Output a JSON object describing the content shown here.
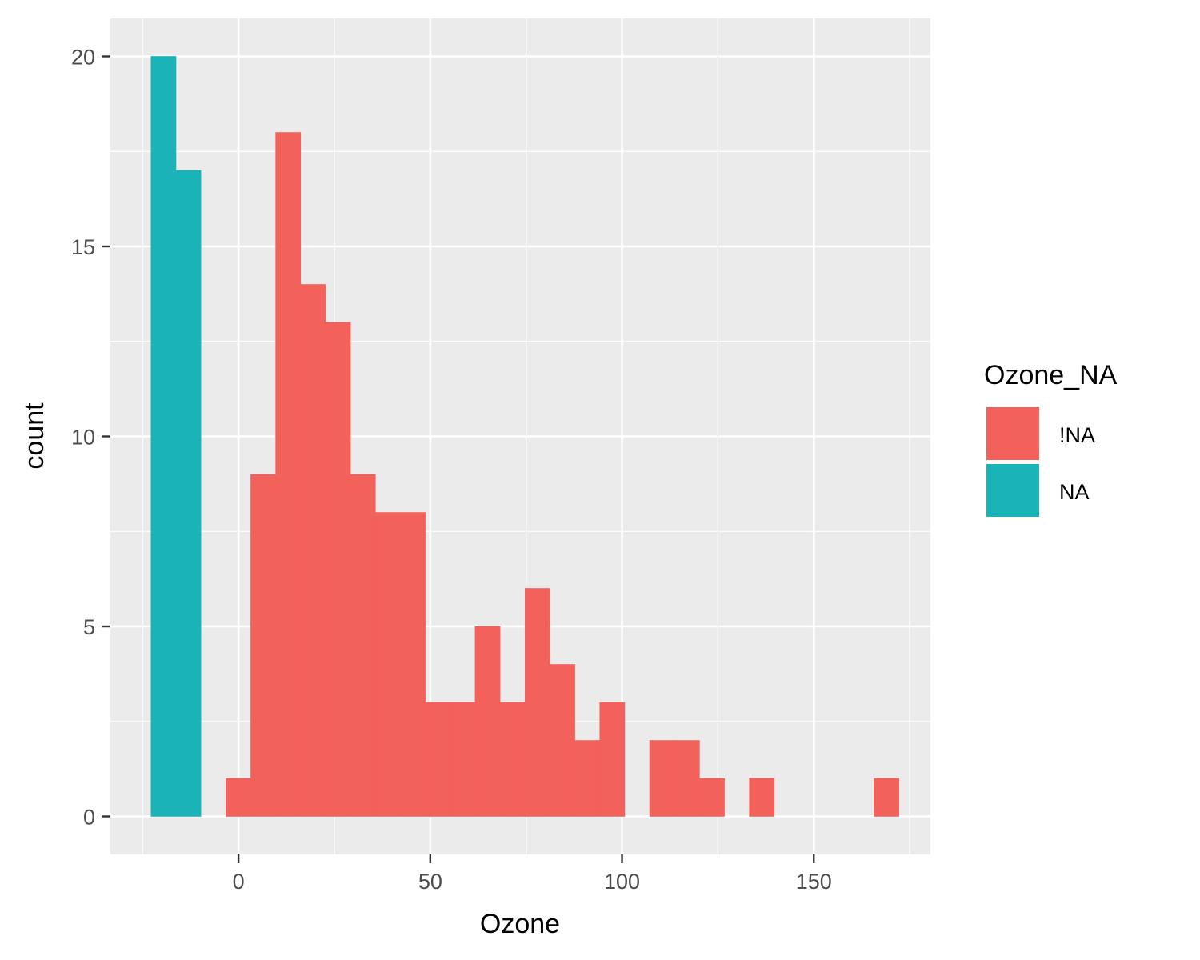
{
  "chart_data": {
    "type": "bar",
    "title": "",
    "xlabel": "Ozone",
    "ylabel": "count",
    "xlim": [
      -33.4,
      180.4
    ],
    "ylim": [
      -1,
      21
    ],
    "x_ticks": [
      0,
      50,
      100,
      150
    ],
    "y_ticks": [
      0,
      5,
      10,
      15,
      20
    ],
    "x_tick_labels": [
      "0",
      "50",
      "100",
      "150"
    ],
    "y_tick_labels": [
      "0",
      "5",
      "10",
      "15",
      "20"
    ],
    "grid": true,
    "bin_width": 6.5,
    "legend": {
      "title": "Ozone_NA",
      "placement": "right",
      "entries": [
        {
          "label": "!NA",
          "color": "#F8766D"
        },
        {
          "label": "NA",
          "color": "#00BFC4"
        }
      ]
    },
    "series": [
      {
        "name": "!NA",
        "color": "#F3615B",
        "bins": [
          {
            "start": -3.3,
            "end": 3.2,
            "count": 1
          },
          {
            "start": 3.2,
            "end": 9.7,
            "count": 9
          },
          {
            "start": 9.7,
            "end": 16.2,
            "count": 18
          },
          {
            "start": 16.2,
            "end": 22.7,
            "count": 14
          },
          {
            "start": 22.7,
            "end": 29.2,
            "count": 13
          },
          {
            "start": 29.2,
            "end": 35.7,
            "count": 9
          },
          {
            "start": 35.7,
            "end": 42.2,
            "count": 8
          },
          {
            "start": 42.2,
            "end": 48.7,
            "count": 8
          },
          {
            "start": 48.7,
            "end": 55.2,
            "count": 3
          },
          {
            "start": 55.2,
            "end": 61.7,
            "count": 3
          },
          {
            "start": 61.7,
            "end": 68.2,
            "count": 5
          },
          {
            "start": 68.2,
            "end": 74.7,
            "count": 3
          },
          {
            "start": 74.7,
            "end": 81.2,
            "count": 6
          },
          {
            "start": 81.2,
            "end": 87.7,
            "count": 4
          },
          {
            "start": 87.7,
            "end": 94.2,
            "count": 2
          },
          {
            "start": 94.2,
            "end": 100.7,
            "count": 3
          },
          {
            "start": 107.2,
            "end": 113.7,
            "count": 2
          },
          {
            "start": 113.7,
            "end": 120.2,
            "count": 2
          },
          {
            "start": 120.2,
            "end": 126.7,
            "count": 1
          },
          {
            "start": 133.2,
            "end": 139.7,
            "count": 1
          },
          {
            "start": 165.7,
            "end": 172.2,
            "count": 1
          }
        ]
      },
      {
        "name": "NA",
        "color": "#1AB4B8",
        "bins": [
          {
            "start": -22.8,
            "end": -16.3,
            "count": 20
          },
          {
            "start": -16.3,
            "end": -9.8,
            "count": 17
          }
        ]
      }
    ]
  }
}
